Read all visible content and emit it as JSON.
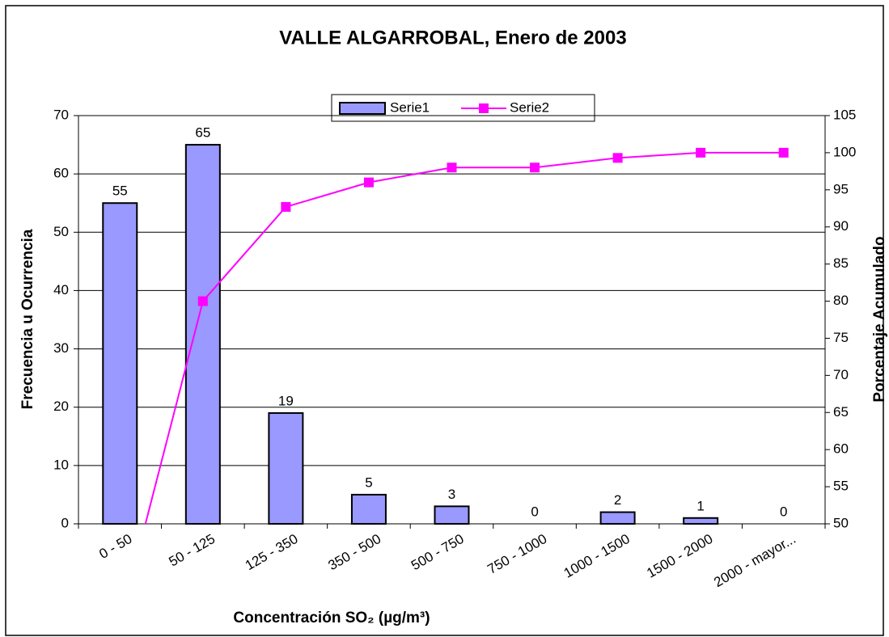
{
  "chart_data": {
    "type": "bar_line",
    "title": "VALLE ALGARROBAL,  Enero de 2003",
    "xlabel": "Concentración SO₂ (µg/m³)",
    "ylabel": "Frecuencia u Ocurrencia",
    "y2label": "Porcentaje Acumulado",
    "categories": [
      "0 - 50",
      "50 - 125",
      "125 - 350",
      "350 - 500",
      "500 - 750",
      "750 - 1000",
      "1000 - 1500",
      "1500 - 2000",
      "2000 - mayor..."
    ],
    "series": [
      {
        "name": "Serie1",
        "color": "#9999ff",
        "values": [
          55,
          65,
          19,
          5,
          3,
          0,
          2,
          1,
          0
        ]
      },
      {
        "name": "Serie2",
        "color": "#ff00ff",
        "axis": "y2",
        "values": [
          36.7,
          80,
          92.7,
          96,
          98,
          98,
          99.3,
          100,
          100
        ]
      }
    ],
    "ylim": [
      0,
      70
    ],
    "yticks": [
      0,
      10,
      20,
      30,
      40,
      50,
      60,
      70
    ],
    "y2lim": [
      50,
      105
    ],
    "y2ticks": [
      50,
      55,
      60,
      65,
      70,
      75,
      80,
      85,
      90,
      95,
      100,
      105
    ],
    "grid": true,
    "legend": "top"
  }
}
